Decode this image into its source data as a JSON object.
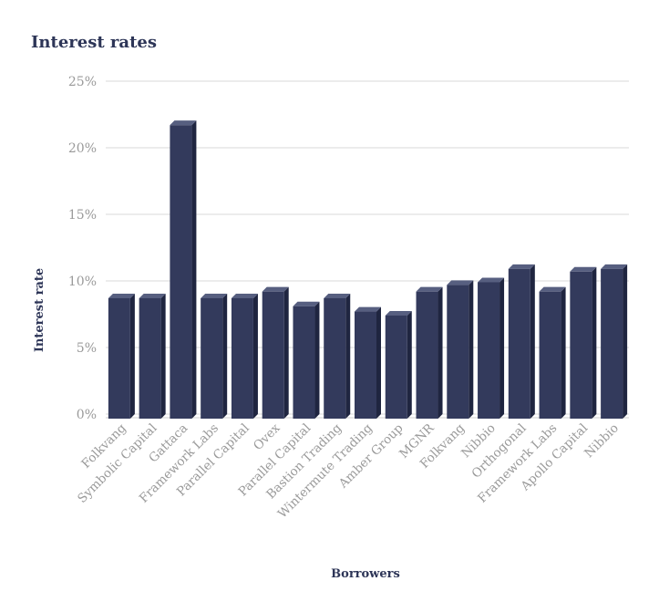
{
  "chart_data": {
    "type": "bar",
    "title": "Interest rates",
    "xlabel": "Borrowers",
    "ylabel": "Interest rate",
    "ylim": [
      0,
      25
    ],
    "yticks": [
      "0%",
      "5%",
      "10%",
      "15%",
      "20%",
      "25%"
    ],
    "grid": true,
    "categories": [
      "Folkvang",
      "Symbolic Capital",
      "Gattaca",
      "Framework Labs",
      "Parallel Capital",
      "Ovex",
      "Parallel Capital",
      "Bastion Trading",
      "Wintermute Trading",
      "Amber Group",
      "MGNR",
      "Folkvang",
      "Nibbio",
      "Orthogonal",
      "Framework Labs",
      "Apollo Capital",
      "Nibbio"
    ],
    "values": [
      8.7,
      8.7,
      21.7,
      8.7,
      8.7,
      9.2,
      8.1,
      8.7,
      7.7,
      7.4,
      9.2,
      9.7,
      9.9,
      10.9,
      9.2,
      10.7,
      10.9
    ],
    "colors": {
      "bar_front": "#333a5c",
      "bar_top": "#575f80",
      "bar_side": "#1f2540",
      "text": "#2d3557",
      "tick": "#9a9a9a"
    }
  }
}
